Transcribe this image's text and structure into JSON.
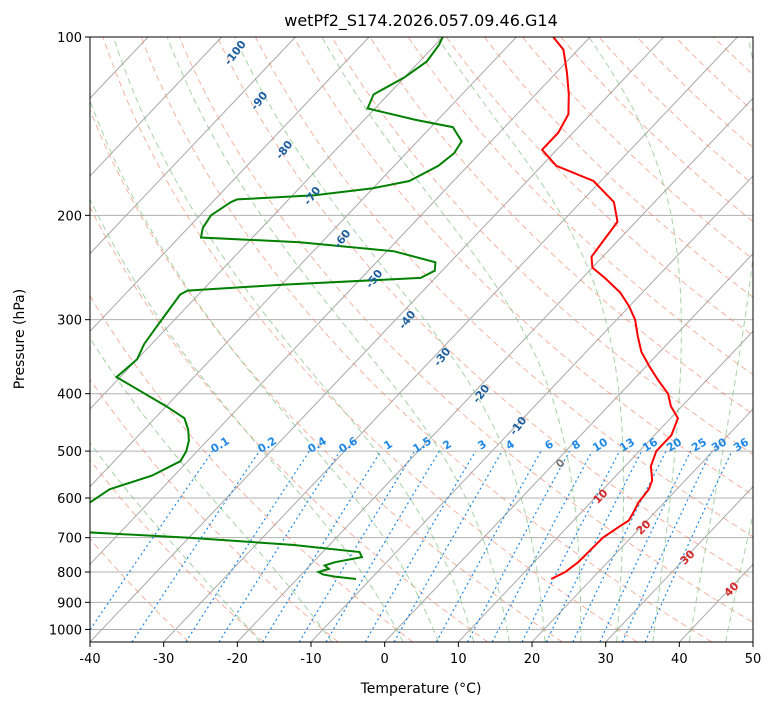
{
  "chart_data": {
    "type": "line",
    "subtype": "skew-t log-p thermodynamic diagram",
    "title": "wetPf2_S174.2026.057.09.46.G14",
    "xlabel": "Temperature (°C)",
    "ylabel": "Pressure (hPa)",
    "xlim": [
      -40,
      50
    ],
    "ylim": [
      1050,
      100
    ],
    "y_scale": "log",
    "x_ticks": [
      -40,
      -30,
      -20,
      -10,
      0,
      10,
      20,
      30,
      40,
      50
    ],
    "y_ticks": [
      100,
      200,
      300,
      400,
      500,
      600,
      700,
      800,
      900,
      1000
    ],
    "grid": true,
    "legend": "none",
    "series": [
      {
        "color": "#ff0000",
        "points": [
          [
            822,
            14.5
          ],
          [
            800,
            15.5
          ],
          [
            770,
            16.0
          ],
          [
            700,
            16.2
          ],
          [
            670,
            17.0
          ],
          [
            655,
            17.5
          ],
          [
            640,
            17.2
          ],
          [
            610,
            16.5
          ],
          [
            580,
            16.2
          ],
          [
            560,
            15.5
          ],
          [
            530,
            13.5
          ],
          [
            500,
            12.3
          ],
          [
            470,
            12.3
          ],
          [
            440,
            11.0
          ],
          [
            420,
            8.5
          ],
          [
            400,
            6.5
          ],
          [
            380,
            3.5
          ],
          [
            360,
            0.5
          ],
          [
            340,
            -2.5
          ],
          [
            320,
            -5.0
          ],
          [
            300,
            -7.5
          ],
          [
            285,
            -10.0
          ],
          [
            270,
            -13.0
          ],
          [
            255,
            -17.0
          ],
          [
            245,
            -20.0
          ],
          [
            235,
            -21.5
          ],
          [
            220,
            -22.0
          ],
          [
            205,
            -22.5
          ],
          [
            190,
            -25.5
          ],
          [
            175,
            -31.0
          ],
          [
            165,
            -38.0
          ],
          [
            155,
            -42.0
          ],
          [
            145,
            -42.0
          ],
          [
            135,
            -43.0
          ],
          [
            125,
            -45.5
          ],
          [
            115,
            -48.5
          ],
          [
            105,
            -52.0
          ],
          [
            100,
            -55.0
          ]
        ]
      },
      {
        "color": "#008000",
        "points": [
          [
            822,
            -12.0
          ],
          [
            815,
            -15.0
          ],
          [
            808,
            -17.0
          ],
          [
            800,
            -18.0
          ],
          [
            790,
            -17.0
          ],
          [
            780,
            -18.0
          ],
          [
            770,
            -17.0
          ],
          [
            755,
            -14.0
          ],
          [
            740,
            -15.0
          ],
          [
            720,
            -25.0
          ],
          [
            700,
            -40.0
          ],
          [
            690,
            -50.0
          ],
          [
            680,
            -60.0
          ],
          [
            580,
            -57.0
          ],
          [
            550,
            -53.0
          ],
          [
            520,
            -51.0
          ],
          [
            500,
            -51.5
          ],
          [
            480,
            -52.5
          ],
          [
            460,
            -54.0
          ],
          [
            440,
            -56.0
          ],
          [
            420,
            -60.0
          ],
          [
            375,
            -70.5
          ],
          [
            350,
            -70.0
          ],
          [
            330,
            -71.0
          ],
          [
            310,
            -71.5
          ],
          [
            290,
            -72.0
          ],
          [
            272,
            -72.5
          ],
          [
            268,
            -72.0
          ],
          [
            262,
            -60.0
          ],
          [
            255,
            -42.0
          ],
          [
            248,
            -41.0
          ],
          [
            240,
            -42.0
          ],
          [
            230,
            -49.0
          ],
          [
            222,
            -63.0
          ],
          [
            218,
            -77.0
          ],
          [
            210,
            -78.0
          ],
          [
            200,
            -78.5
          ],
          [
            190,
            -77.5
          ],
          [
            188,
            -77.0
          ],
          [
            185,
            -67.0
          ],
          [
            180,
            -60.0
          ],
          [
            175,
            -56.0
          ],
          [
            165,
            -54.0
          ],
          [
            157,
            -53.5
          ],
          [
            150,
            -54.0
          ],
          [
            142,
            -57.0
          ],
          [
            138,
            -63.0
          ],
          [
            132,
            -71.0
          ],
          [
            125,
            -72.0
          ],
          [
            117,
            -70.0
          ],
          [
            110,
            -69.0
          ],
          [
            103,
            -69.5
          ],
          [
            100,
            -70.0
          ]
        ]
      }
    ],
    "dry_adiabat_labels": [
      "-100",
      "-90",
      "-80",
      "-70",
      "-60",
      "-50",
      "-40",
      "-30",
      "-20",
      "-10"
    ],
    "mixing_ratio_labels": [
      "0.1",
      "0.2",
      "0.4",
      "0.6",
      "1",
      "1.5",
      "2",
      "3",
      "4",
      "6",
      "8",
      "10",
      "13",
      "16",
      "20",
      "25",
      "30",
      "36"
    ],
    "moist_adiabat_labels": [
      "0",
      "10",
      "20",
      "30",
      "40"
    ]
  },
  "colors": {
    "temperature": "#ff0000",
    "dewpoint": "#008000",
    "dry_adiabat": "#f08060",
    "moist_adiabat": "#80c080",
    "mixing_ratio": "#1e88e5",
    "isotherm": "#999999",
    "dry_label": "#1f5fa0",
    "moist_label": "#d62728"
  }
}
